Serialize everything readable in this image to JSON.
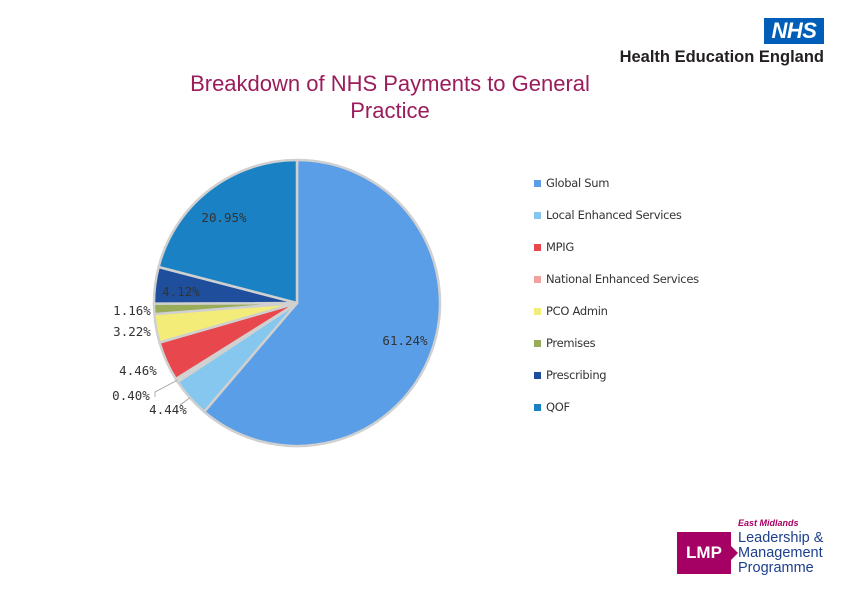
{
  "branding": {
    "nhs_logo": "NHS",
    "org_name": "Health Education England",
    "lmp_box": "LMP",
    "lmp_region": "East Midlands",
    "lmp_name": "Leadership & Management Programme"
  },
  "colors": {
    "title": "#9b1c5c",
    "nhs_blue": "#005eb8",
    "lmp_magenta": "#a50064"
  },
  "chart_data": {
    "type": "pie",
    "title": "Breakdown of  NHS Payments to General Practice",
    "start_angle_deg": 0,
    "direction": "clockwise",
    "legend_position": "right",
    "slices": [
      {
        "name": "Global Sum",
        "value": 61.24,
        "label": "61.24%",
        "color": "#5b9ee8"
      },
      {
        "name": "Local Enhanced Services",
        "value": 4.44,
        "label": "4.44%",
        "color": "#86c7ef"
      },
      {
        "name": "MPIG",
        "value": 0.4,
        "label": "0.40%",
        "color": "#d9d9d9"
      },
      {
        "name": "National Enhanced Services",
        "value": 4.46,
        "label": "4.46%",
        "color": "#e8484d"
      },
      {
        "name": "PCO Admin",
        "value": 3.22,
        "label": "3.22%",
        "color": "#f3ec78"
      },
      {
        "name": "Premises",
        "value": 1.16,
        "label": "1.16%",
        "color": "#98ac5a"
      },
      {
        "name": "Prescribing",
        "value": 4.12,
        "label": "4.12%",
        "color": "#1f4f9c"
      },
      {
        "name": "QOF",
        "value": 20.95,
        "label": "20.95%",
        "color": "#1a82c4"
      }
    ],
    "legend": [
      {
        "name": "Global Sum",
        "color": "#5b9ee8"
      },
      {
        "name": "Local Enhanced Services",
        "color": "#86c7ef"
      },
      {
        "name": "MPIG",
        "color": "#e8484d"
      },
      {
        "name": "National Enhanced Services",
        "color": "#f2a0a0"
      },
      {
        "name": "PCO Admin",
        "color": "#f3ec78"
      },
      {
        "name": "Premises",
        "color": "#98ac5a"
      },
      {
        "name": "Prescribing",
        "color": "#1f4f9c"
      },
      {
        "name": "QOF",
        "color": "#1a82c4"
      }
    ]
  }
}
